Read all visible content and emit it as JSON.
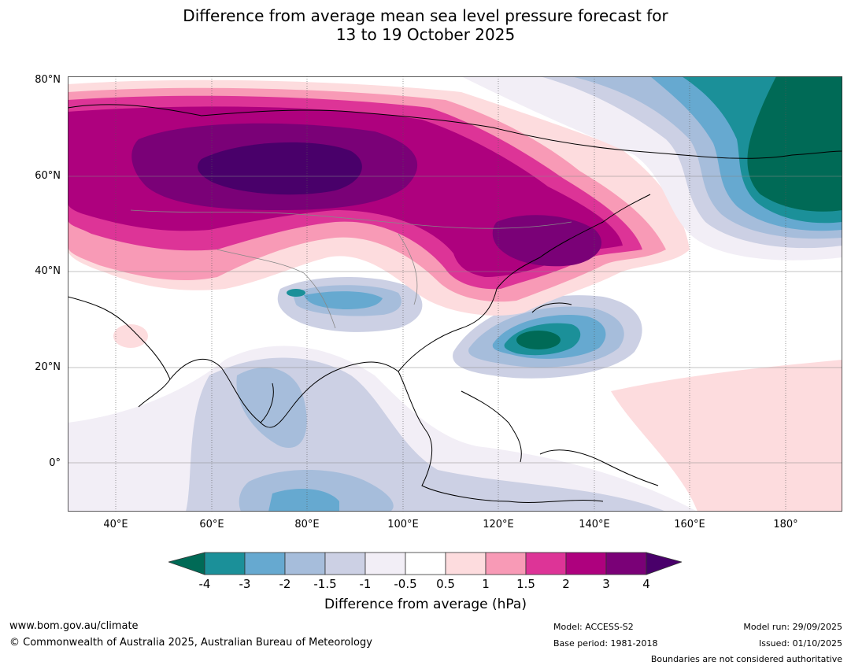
{
  "title": {
    "line1": "Difference from average mean sea level pressure forecast for",
    "line2": "13 to 19 October 2025"
  },
  "axes": {
    "lat_labels": [
      "80°N",
      "60°N",
      "40°N",
      "20°N",
      "0°"
    ],
    "lon_labels": [
      "40°E",
      "60°E",
      "80°E",
      "100°E",
      "120°E",
      "140°E",
      "160°E",
      "180°"
    ]
  },
  "colorbar": {
    "ticks": [
      "-4",
      "-3",
      "-2",
      "-1.5",
      "-1",
      "-0.5",
      "0.5",
      "1",
      "1.5",
      "2",
      "3",
      "4"
    ],
    "colors": [
      "#006a56",
      "#1b9099",
      "#66a9d0",
      "#a6bddb",
      "#ccd0e4",
      "#f2eef6",
      "#ffffff",
      "#fddcde",
      "#f89ab6",
      "#dd3497",
      "#ae017e",
      "#7a0177",
      "#49006a"
    ],
    "label": "Difference from average (hPa)"
  },
  "footer": {
    "url": "www.bom.gov.au/climate",
    "copyright": "© Commonwealth of Australia 2025, Australian Bureau of Meteorology",
    "model": "Model: ACCESS-S2",
    "base_period": "Base period: 1981-2018",
    "model_run": "Model run: 29/09/2025",
    "issued": "Issued: 01/10/2025",
    "disclaimer": "Boundaries are not considered authoritative"
  }
}
